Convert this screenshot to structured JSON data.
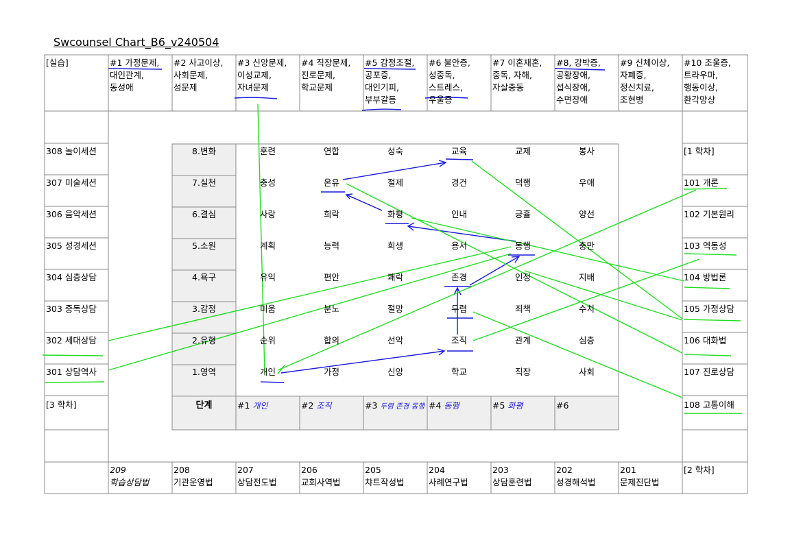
{
  "title": "Swcounsel Chart_B6_v240504",
  "top_row": [
    {
      "label": "[실습]"
    },
    {
      "label": "#1 가정문제,\n대인관계,\n동성애"
    },
    {
      "label": "#2 사고이상,\n사회문제,\n성문제"
    },
    {
      "label": "#3 신앙문제,\n이성교제,\n자녀문제"
    },
    {
      "label": "#4 직장문제,\n진로문제,\n학교문제"
    },
    {
      "label": "#5 감정조절,\n공포증,\n대인기피,\n부부갈등"
    },
    {
      "label": "#6 불안증,\n성중독,\n스트레스,\n우울증"
    },
    {
      "label": "#7 이혼재혼,\n중독, 자해,\n자살충동"
    },
    {
      "label": "#8, 강박증,\n공황장애,\n섭식장애,\n수면장애"
    },
    {
      "label": "#9 신체이상,\n자폐증,\n정신치료,\n조현병"
    },
    {
      "label": "#10 조울증,\n트라우마,\n행동이상,\n환각망상"
    }
  ],
  "left_col": [
    "308 놀이세션",
    "307 미술세션",
    "306 음악세션",
    "305 성경세션",
    "304 심층상담",
    "303 중독상담",
    "302 세대상담",
    "301 상담역사",
    "[3 학차]"
  ],
  "right_col": [
    "[1 학차]",
    "101 개론",
    "102 기본원리",
    "103 역동성",
    "104 방법론",
    "105 가정상담",
    "106 대화법",
    "107 진로상담",
    "108 고통이해"
  ],
  "bottom_row": [
    {
      "code": "209",
      "name": "학습상담법"
    },
    {
      "code": "208",
      "name": "기관운영법"
    },
    {
      "code": "207",
      "name": "상담전도법"
    },
    {
      "code": "206",
      "name": "교회사역법"
    },
    {
      "code": "205",
      "name": "챠트작성법"
    },
    {
      "code": "204",
      "name": "사례연구법"
    },
    {
      "code": "203",
      "name": "상담훈련법"
    },
    {
      "code": "202",
      "name": "성경해석법"
    },
    {
      "code": "201",
      "name": "문제진단법"
    },
    {
      "code": "",
      "name": "[2 학차]"
    }
  ],
  "levels": [
    "8.변화",
    "7.실천",
    "6.결심",
    "5.소원",
    "4.욕구",
    "3.감정",
    "2.유형",
    "1.영역"
  ],
  "matrix": [
    [
      "훈련",
      "연합",
      "성숙",
      "교육",
      "교제",
      "봉사"
    ],
    [
      "충성",
      "온유",
      "절제",
      "경건",
      "덕행",
      "우애"
    ],
    [
      "사랑",
      "희락",
      "화평",
      "인내",
      "긍휼",
      "양선"
    ],
    [
      "계획",
      "능력",
      "희생",
      "용서",
      "동행",
      "충만"
    ],
    [
      "유익",
      "편안",
      "쾌락",
      "존경",
      "인정",
      "지배"
    ],
    [
      "미움",
      "분노",
      "절망",
      "두렴",
      "죄책",
      "수치"
    ],
    [
      "순위",
      "합의",
      "선악",
      "조직",
      "관계",
      "심층"
    ],
    [
      "개인",
      "가정",
      "신앙",
      "학교",
      "직장",
      "사회"
    ]
  ],
  "stage_label": "단계",
  "stages": [
    {
      "num": "#1",
      "note": "개인"
    },
    {
      "num": "#2",
      "note": "조직"
    },
    {
      "num": "#3",
      "note": "두렴 존경 동행"
    },
    {
      "num": "#4",
      "note": "동행"
    },
    {
      "num": "#5",
      "note": "화평"
    },
    {
      "num": "#6",
      "note": ""
    }
  ],
  "colors": {
    "blue_ink": "#1a1adc",
    "green_ink": "#22dd22",
    "grid_line": "#8a8a8a",
    "shade": "#efefef"
  }
}
